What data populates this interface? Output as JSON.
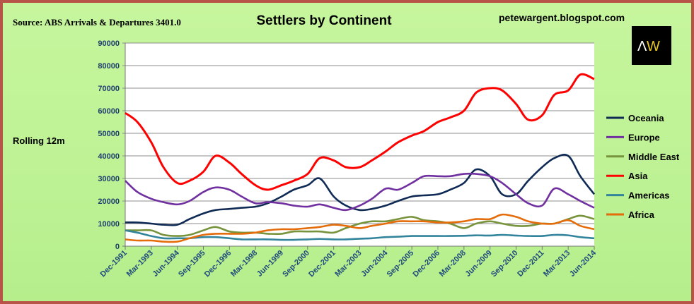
{
  "chart_data": {
    "type": "line",
    "title": "Settlers by Continent",
    "source": "Source: ABS Arrivals & Departures 3401.0",
    "watermark": "petewargent.blogspot.com",
    "logo_text": "AW",
    "ylabel": "Rolling 12m",
    "xlabel": "",
    "ylim": [
      0,
      90000
    ],
    "yticks": [
      0,
      10000,
      20000,
      30000,
      40000,
      50000,
      60000,
      70000,
      80000,
      90000
    ],
    "xtick_labels": [
      "Dec-1991",
      "Mar-1993",
      "Jun-1994",
      "Sep-1995",
      "Dec-1996",
      "Mar-1998",
      "Jun-1999",
      "Sep-2000",
      "Dec-2001",
      "Mar-2003",
      "Jun-2004",
      "Sep-2005",
      "Dec-2006",
      "Mar-2008",
      "Jun-2009",
      "Sep-2010",
      "Dec-2011",
      "Mar-2013",
      "Jun-2014"
    ],
    "grid": "horizontal",
    "legend_position": "right",
    "x": [
      "1991-12",
      "1992-07",
      "1993-03",
      "1993-10",
      "1994-06",
      "1995-01",
      "1995-09",
      "1996-04",
      "1996-12",
      "1997-07",
      "1998-03",
      "1998-10",
      "1999-06",
      "2000-01",
      "2000-09",
      "2001-04",
      "2001-12",
      "2002-07",
      "2003-03",
      "2003-10",
      "2004-06",
      "2005-01",
      "2005-09",
      "2006-04",
      "2006-12",
      "2007-07",
      "2008-03",
      "2008-10",
      "2009-06",
      "2010-01",
      "2010-09",
      "2011-04",
      "2011-12",
      "2012-07",
      "2013-03",
      "2013-10",
      "2014-06"
    ],
    "series": [
      {
        "name": "Oceania",
        "color": "#0f2a55",
        "values": [
          10500,
          10500,
          10000,
          9500,
          9500,
          12000,
          14500,
          16000,
          16500,
          17000,
          17500,
          19000,
          22000,
          25000,
          27000,
          30000,
          22000,
          18000,
          16000,
          16500,
          18000,
          20000,
          22000,
          22500,
          23000,
          25000,
          28000,
          34000,
          31000,
          23000,
          23000,
          29000,
          35000,
          39000,
          40000,
          31000,
          23000
        ]
      },
      {
        "name": "Europe",
        "color": "#7030a0",
        "values": [
          29000,
          24000,
          21000,
          19500,
          18500,
          20000,
          24000,
          26000,
          25000,
          22000,
          19000,
          19500,
          19000,
          18000,
          17500,
          18500,
          17000,
          16000,
          18000,
          21000,
          25500,
          25000,
          28000,
          31000,
          31000,
          31000,
          32000,
          32000,
          31000,
          28000,
          23000,
          19000,
          18000,
          25500,
          23000,
          20000,
          17000
        ]
      },
      {
        "name": "Middle East",
        "color": "#77933c",
        "values": [
          7000,
          7000,
          7000,
          5000,
          4500,
          5000,
          7000,
          8500,
          6500,
          6000,
          6000,
          5500,
          5500,
          6500,
          6500,
          6500,
          6000,
          8000,
          10000,
          11000,
          11000,
          12000,
          13000,
          11500,
          11000,
          10000,
          8000,
          10000,
          11000,
          10000,
          9000,
          9000,
          10000,
          10000,
          12000,
          13500,
          12000
        ]
      },
      {
        "name": "Asia",
        "color": "#ff0000",
        "values": [
          59000,
          55000,
          46000,
          35000,
          28000,
          29000,
          33000,
          40000,
          37000,
          32000,
          27000,
          25000,
          27000,
          29000,
          32000,
          39000,
          38000,
          35000,
          35000,
          38000,
          42000,
          46000,
          49000,
          51000,
          55000,
          57000,
          60000,
          68000,
          70000,
          69000,
          63000,
          56000,
          58000,
          67000,
          69000,
          76000,
          74000
        ]
      },
      {
        "name": "Americas",
        "color": "#31849b",
        "values": [
          7000,
          6000,
          4500,
          3500,
          3500,
          3500,
          4000,
          4000,
          3500,
          3000,
          3000,
          3000,
          2800,
          2800,
          3000,
          3200,
          3000,
          3000,
          3300,
          3500,
          4000,
          4200,
          4500,
          4500,
          4500,
          4500,
          4600,
          4800,
          4700,
          5000,
          4700,
          4500,
          4500,
          5000,
          4800,
          4000,
          3500
        ]
      },
      {
        "name": "Africa",
        "color": "#e46c0a",
        "values": [
          3000,
          2500,
          2500,
          2000,
          2000,
          3500,
          5000,
          5500,
          5500,
          5500,
          6000,
          7000,
          7500,
          7500,
          8000,
          8500,
          9500,
          9000,
          8000,
          9000,
          10000,
          11000,
          11000,
          11000,
          10500,
          10500,
          11000,
          12000,
          12000,
          14000,
          13000,
          11000,
          10000,
          10000,
          11500,
          9000,
          7500
        ]
      }
    ]
  }
}
